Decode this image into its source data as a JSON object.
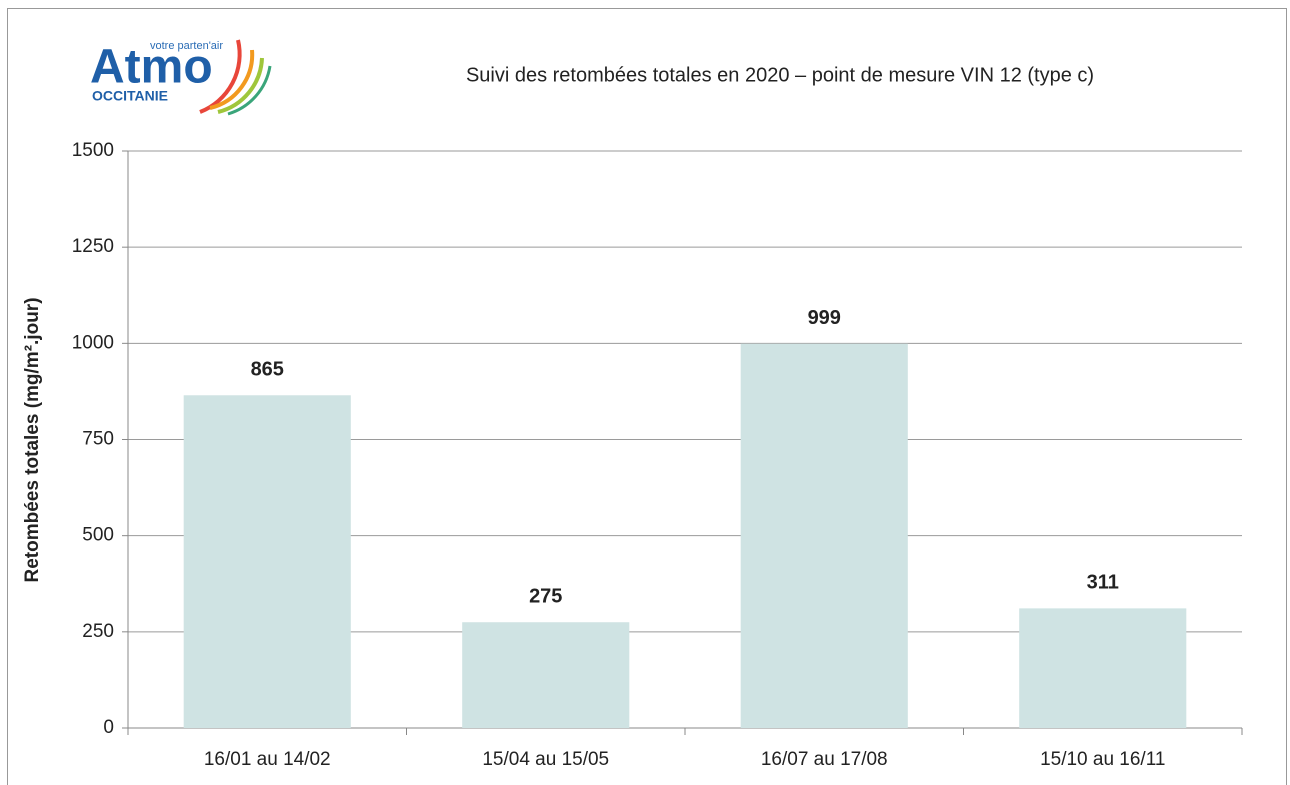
{
  "logo": {
    "tagline": "votre parten'air",
    "name": "Atmo",
    "region": "OCCITANIE"
  },
  "chart_data": {
    "type": "bar",
    "title": "Suivi des retombées totales en 2020 – point de mesure VIN 12 (type c)",
    "y_label": "Retombées totales (mg/m².jour)",
    "categories": [
      "16/01 au 14/02",
      "15/04 au 15/05",
      "16/07 au 17/08",
      "15/10 au 16/11"
    ],
    "values": [
      865,
      275,
      999,
      311
    ],
    "color": "#cfe3e3",
    "ylim": [
      0,
      1500
    ],
    "yticks": [
      0,
      250,
      500,
      750,
      1000,
      1250,
      1500
    ],
    "grid": true
  }
}
